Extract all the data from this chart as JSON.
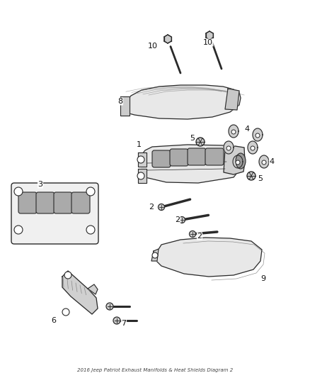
{
  "title": "2016 Jeep Patriot Exhaust Manifolds & Heat Shields Diagram 2",
  "background_color": "#ffffff",
  "fig_width": 4.38,
  "fig_height": 5.33,
  "dpi": 100,
  "label_fontsize": 8,
  "line_color": "#2a2a2a",
  "fill_light": "#e8e8e8",
  "fill_mid": "#d0d0d0",
  "fill_dark": "#b0b0b0"
}
